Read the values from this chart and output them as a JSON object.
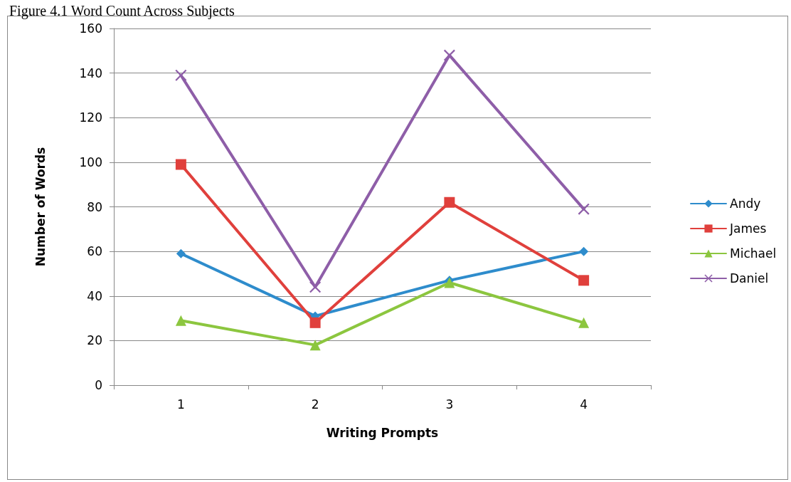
{
  "chart_data": {
    "type": "line",
    "title": "Figure 4.1 Word Count Across Subjects",
    "xlabel": "Writing Prompts",
    "ylabel": "Number of Words",
    "categories": [
      "1",
      "2",
      "3",
      "4"
    ],
    "ylim": [
      0,
      160
    ],
    "yticks": [
      0,
      20,
      40,
      60,
      80,
      100,
      120,
      140,
      160
    ],
    "grid": "y",
    "legend": "right",
    "line_style": "solid",
    "series": [
      {
        "name": "Andy",
        "color": "#2e8ccc",
        "marker": "diamond",
        "values": [
          59,
          31,
          47,
          60
        ]
      },
      {
        "name": "James",
        "color": "#e0403c",
        "marker": "square",
        "values": [
          99,
          28,
          82,
          47
        ]
      },
      {
        "name": "Michael",
        "color": "#8cc63f",
        "marker": "triangle",
        "values": [
          29,
          18,
          46,
          28
        ]
      },
      {
        "name": "Daniel",
        "color": "#8e5ea8",
        "marker": "cross",
        "values": [
          139,
          44,
          148,
          79
        ]
      }
    ]
  }
}
